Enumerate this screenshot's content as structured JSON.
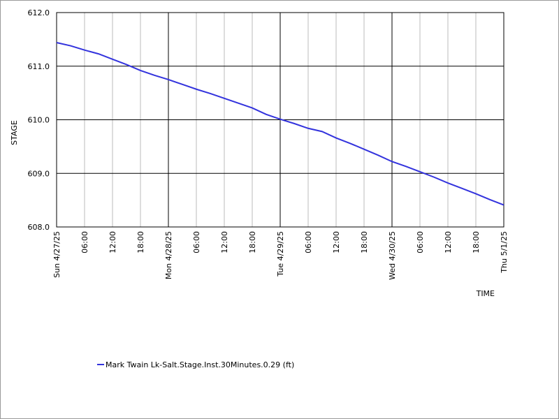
{
  "chart_data": {
    "type": "line",
    "xlabel": "TIME",
    "ylabel": "STAGE",
    "x": [
      0,
      3,
      6,
      9,
      12,
      15,
      18,
      21,
      24,
      27,
      30,
      33,
      36,
      39,
      42,
      45,
      48,
      51,
      54,
      57,
      60,
      63,
      66,
      69,
      72,
      75,
      78,
      81,
      84,
      87,
      90,
      93,
      96
    ],
    "series": [
      {
        "name": "Mark Twain Lk-Salt.Stage.Inst.30Minutes.0.29 (ft)",
        "color": "#3333dd",
        "values": [
          611.44,
          611.38,
          611.3,
          611.23,
          611.13,
          611.03,
          610.92,
          610.83,
          610.75,
          610.66,
          610.57,
          610.49,
          610.4,
          610.31,
          610.22,
          610.1,
          610.01,
          609.93,
          609.84,
          609.78,
          609.66,
          609.56,
          609.45,
          609.34,
          609.22,
          609.13,
          609.03,
          608.93,
          608.82,
          608.72,
          608.62,
          608.51,
          608.41
        ]
      }
    ],
    "xlim": [
      0,
      96
    ],
    "xticks": [
      {
        "value": 0,
        "label": "Sun 4/27/25"
      },
      {
        "value": 6,
        "label": "06:00"
      },
      {
        "value": 12,
        "label": "12:00"
      },
      {
        "value": 18,
        "label": "18:00"
      },
      {
        "value": 24,
        "label": "Mon 4/28/25"
      },
      {
        "value": 30,
        "label": "06:00"
      },
      {
        "value": 36,
        "label": "12:00"
      },
      {
        "value": 42,
        "label": "18:00"
      },
      {
        "value": 48,
        "label": "Tue 4/29/25"
      },
      {
        "value": 54,
        "label": "06:00"
      },
      {
        "value": 60,
        "label": "12:00"
      },
      {
        "value": 66,
        "label": "18:00"
      },
      {
        "value": 72,
        "label": "Wed 4/30/25"
      },
      {
        "value": 78,
        "label": "06:00"
      },
      {
        "value": 84,
        "label": "12:00"
      },
      {
        "value": 90,
        "label": "18:00"
      },
      {
        "value": 96,
        "label": "Thu 5/1/25"
      }
    ],
    "ylim": [
      608,
      612
    ],
    "yticks": [
      {
        "value": 608,
        "label": "608.0"
      },
      {
        "value": 609,
        "label": "609.0"
      },
      {
        "value": 610,
        "label": "610.0"
      },
      {
        "value": 611,
        "label": "611.0"
      },
      {
        "value": 612,
        "label": "612.0"
      }
    ],
    "grid": true
  }
}
